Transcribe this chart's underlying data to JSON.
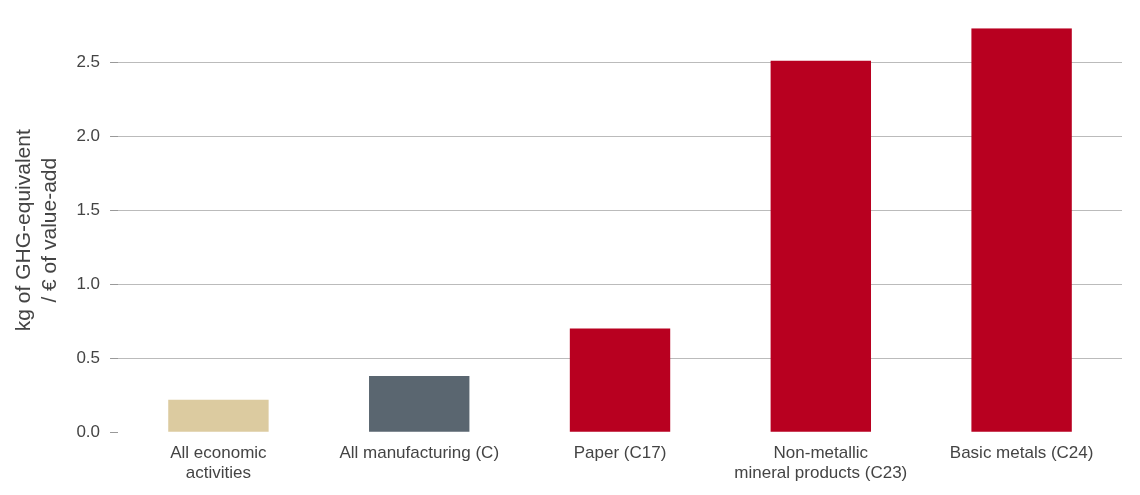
{
  "chart_data": {
    "type": "bar",
    "ylabel": "kg of GHG-equivalent\n/ € of value-add",
    "categories": [
      "All economic\nactivities",
      "All manufacturing (C)",
      "Paper (C17)",
      "Non-metallic\nmineral products (C23)",
      "Basic metals (C24)"
    ],
    "values": [
      0.22,
      0.38,
      0.7,
      2.51,
      2.73
    ],
    "colors": [
      "#dccba0",
      "#5a6670",
      "#b80020",
      "#b80020",
      "#b80020"
    ],
    "ylim": [
      0,
      2.73
    ],
    "yticks": [
      {
        "value": 0,
        "label": "0.0"
      },
      {
        "value": 0.5,
        "label": "0.5"
      },
      {
        "value": 1,
        "label": "1.0"
      },
      {
        "value": 1.5,
        "label": "1.5"
      },
      {
        "value": 2,
        "label": "2.0"
      },
      {
        "value": 2.5,
        "label": "2.5"
      }
    ],
    "grid": "y",
    "legend": false
  }
}
